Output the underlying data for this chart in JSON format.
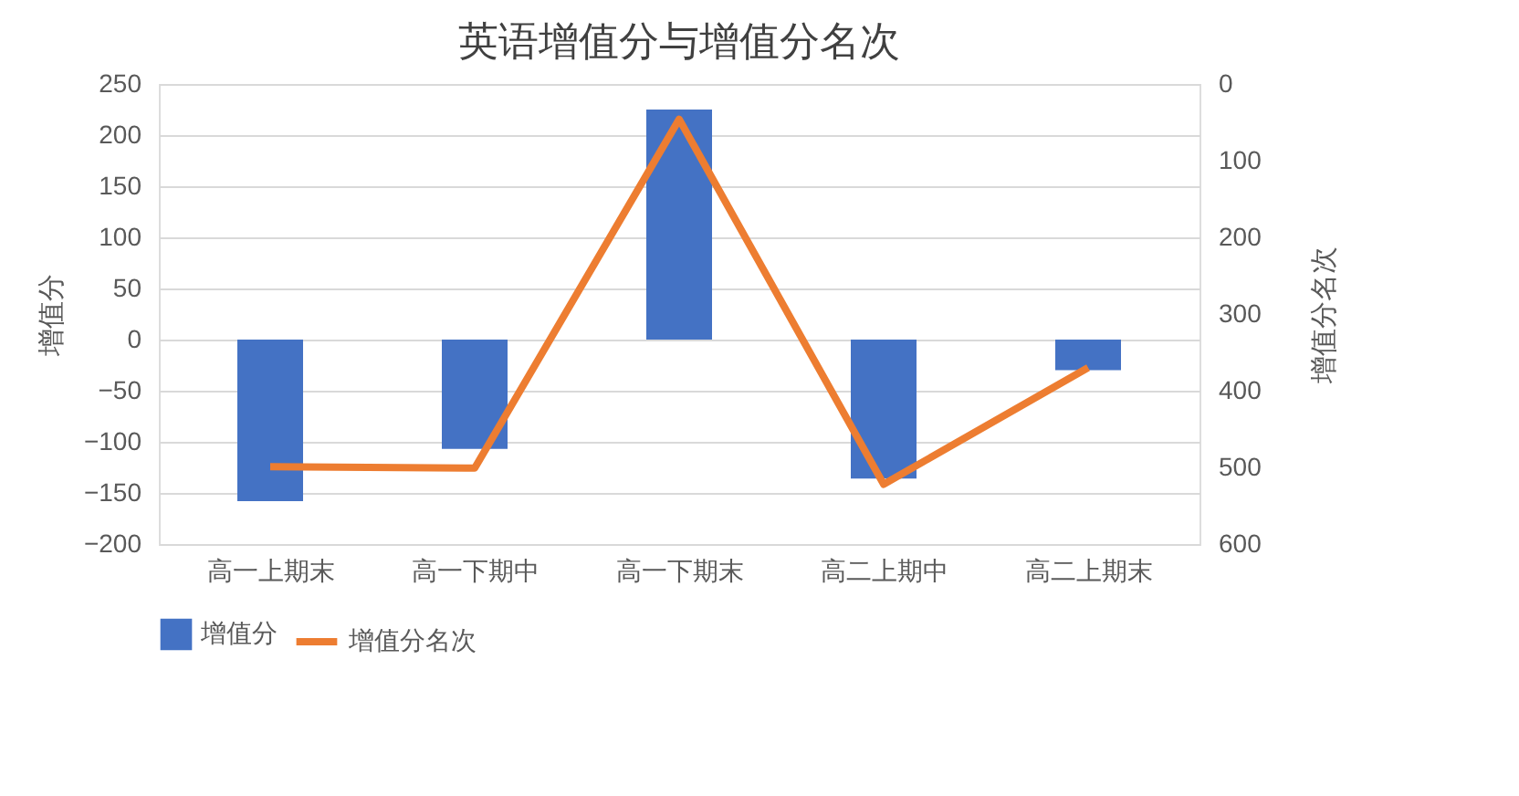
{
  "chart_data": {
    "type": "bar",
    "title": "英语增值分与增值分名次",
    "ylabel": "增值分",
    "y2label": "增值分名次",
    "categories": [
      "高一上期末",
      "高一下期中",
      "高一下期末",
      "高二上期中",
      "高二上期末"
    ],
    "series": [
      {
        "name": "增值分",
        "color": "#4472c4",
        "values": [
          -158,
          -107,
          225,
          -136,
          -30
        ]
      },
      {
        "name": "增值分名次",
        "type": "line",
        "axis": "y2",
        "color": "#ed7d31",
        "values": [
          499,
          501,
          46,
          522,
          370
        ]
      }
    ],
    "ylim": [
      -200,
      250
    ],
    "yticks": [
      -200,
      -150,
      -100,
      -50,
      0,
      50,
      100,
      150,
      200,
      250
    ],
    "y2lim": [
      600,
      0
    ],
    "y2ticks": [
      0,
      100,
      200,
      300,
      400,
      500,
      600
    ],
    "grid": "y",
    "legend": "bottom",
    "marker": "none",
    "line_style": "solid"
  }
}
